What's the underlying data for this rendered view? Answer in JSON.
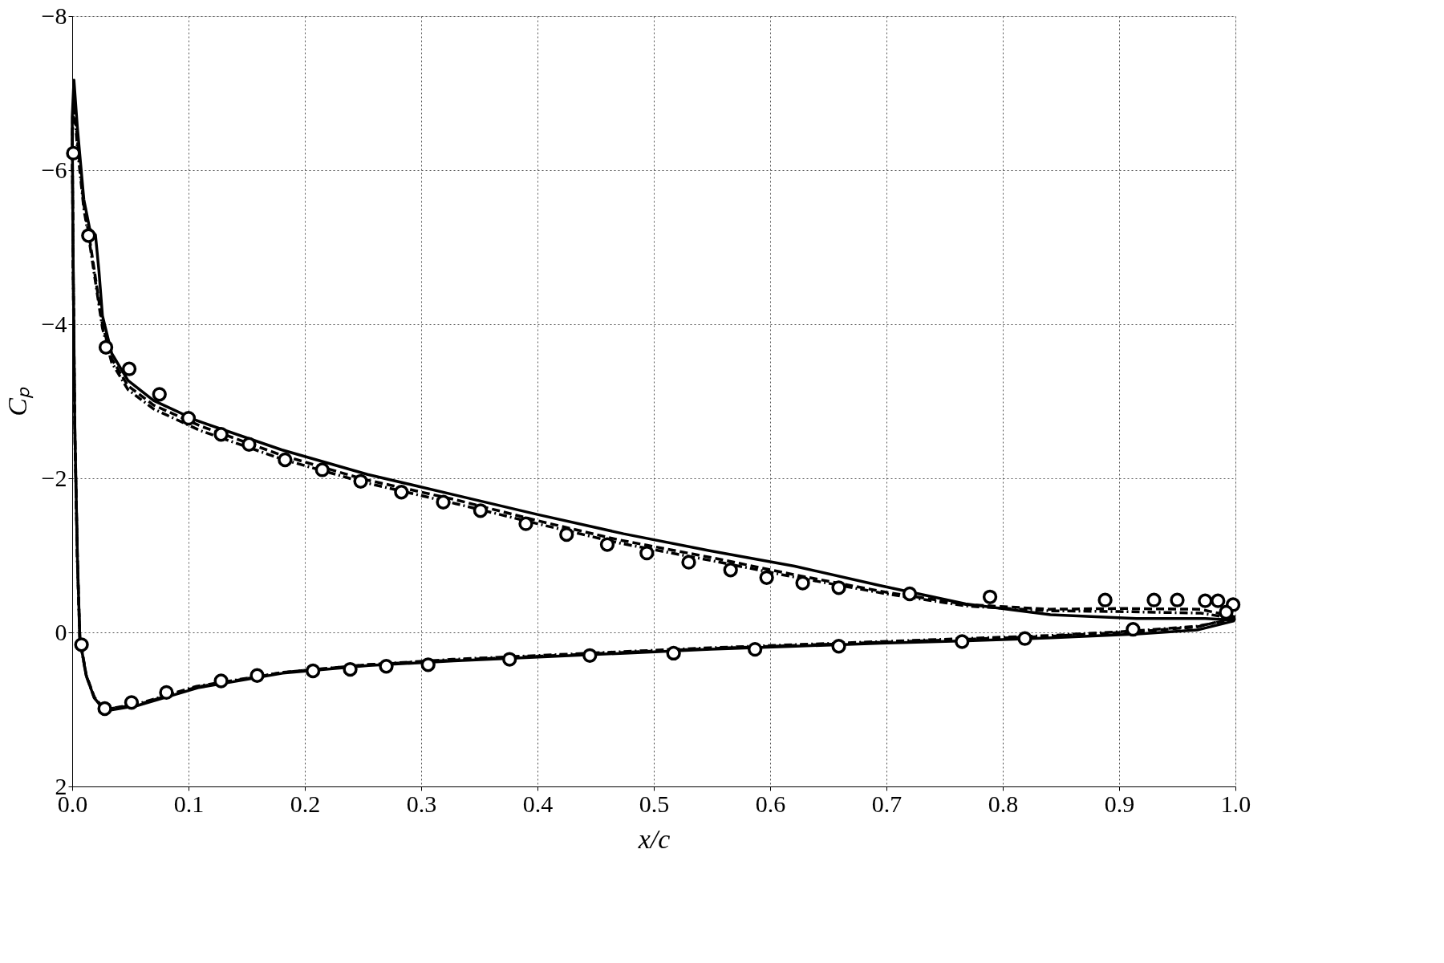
{
  "chart_data": {
    "type": "line",
    "xlabel": "x/c",
    "ylabel": "Cₚ",
    "xlim": [
      0,
      1
    ],
    "ylim": [
      2,
      -8
    ],
    "xticks": [
      {
        "value": 0,
        "label": "0.0"
      },
      0.1,
      0.2,
      0.3,
      0.4,
      0.5,
      0.6,
      0.7,
      0.8,
      0.9,
      {
        "value": 1,
        "label": "1.0"
      }
    ],
    "yticks": [
      2,
      0,
      -2,
      -4,
      -6,
      -8
    ],
    "grid": true,
    "series": [
      {
        "color": "#000000",
        "line_style": "solid",
        "marker": "none",
        "x": [
          1.0,
          0.974,
          0.915,
          0.841,
          0.768,
          0.694,
          0.621,
          0.548,
          0.474,
          0.4,
          0.327,
          0.254,
          0.18,
          0.107,
          0.07,
          0.048,
          0.034,
          0.026,
          0.023,
          0.02,
          0.015,
          0.01,
          0.0044,
          0.0015,
          0.0,
          0.0007,
          0.0022,
          0.0045,
          0.0066,
          0.012,
          0.019,
          0.028,
          0.056,
          0.108,
          0.181,
          0.255,
          0.328,
          0.401,
          0.475,
          0.549,
          0.622,
          0.695,
          0.769,
          0.842,
          0.916,
          0.967,
          0.999
        ],
        "values": [
          -0.16,
          -0.18,
          -0.18,
          -0.23,
          -0.37,
          -0.61,
          -0.86,
          -1.06,
          -1.28,
          -1.53,
          -1.79,
          -2.05,
          -2.37,
          -2.75,
          -3.01,
          -3.27,
          -3.62,
          -4.11,
          -4.69,
          -5.16,
          -5.24,
          -5.62,
          -6.56,
          -7.17,
          -6.68,
          -5.04,
          -2.71,
          -0.96,
          0.09,
          0.56,
          0.85,
          1.02,
          0.95,
          0.72,
          0.53,
          0.43,
          0.37,
          0.32,
          0.27,
          0.22,
          0.18,
          0.14,
          0.11,
          0.07,
          0.02,
          -0.03,
          -0.15
        ]
      },
      {
        "color": "#000000",
        "line_style": "dashed",
        "marker": "none",
        "x": [
          1.0,
          0.97,
          0.9,
          0.84,
          0.77,
          0.7,
          0.62,
          0.55,
          0.47,
          0.4,
          0.33,
          0.25,
          0.18,
          0.11,
          0.07,
          0.048,
          0.034,
          0.026,
          0.02,
          0.015,
          0.01,
          0.0044,
          0.0015,
          0.0,
          0.0007,
          0.0022,
          0.0045,
          0.0066,
          0.012,
          0.019,
          0.028,
          0.056,
          0.107,
          0.181,
          0.254,
          0.327,
          0.401,
          0.474,
          0.548,
          0.621,
          0.694,
          0.768,
          0.841,
          0.915,
          0.967,
          0.999
        ],
        "values": [
          -0.2,
          -0.3,
          -0.31,
          -0.3,
          -0.36,
          -0.52,
          -0.75,
          -0.97,
          -1.2,
          -1.45,
          -1.72,
          -1.99,
          -2.3,
          -2.68,
          -2.95,
          -3.2,
          -3.55,
          -4.0,
          -4.6,
          -5.1,
          -5.55,
          -6.4,
          -6.95,
          -6.5,
          -5.0,
          -2.7,
          -0.95,
          0.08,
          0.55,
          0.84,
          1.0,
          0.94,
          0.71,
          0.52,
          0.42,
          0.36,
          0.31,
          0.26,
          0.21,
          0.17,
          0.13,
          0.09,
          0.05,
          -0.01,
          -0.07,
          -0.19
        ]
      },
      {
        "color": "#000000",
        "line_style": "dashdot",
        "marker": "none",
        "x": [
          1.0,
          0.97,
          0.9,
          0.84,
          0.77,
          0.7,
          0.62,
          0.55,
          0.47,
          0.4,
          0.33,
          0.25,
          0.18,
          0.11,
          0.07,
          0.048,
          0.034,
          0.026,
          0.02,
          0.015,
          0.01,
          0.0044,
          0.0015,
          0.0,
          0.0007,
          0.0022,
          0.0045,
          0.0066,
          0.012,
          0.019,
          0.028,
          0.056,
          0.107,
          0.181,
          0.254,
          0.327,
          0.401,
          0.474,
          0.548,
          0.621,
          0.694,
          0.768,
          0.841,
          0.915,
          0.967,
          0.999
        ],
        "values": [
          -0.18,
          -0.25,
          -0.27,
          -0.28,
          -0.34,
          -0.5,
          -0.72,
          -0.93,
          -1.16,
          -1.41,
          -1.67,
          -1.95,
          -2.25,
          -2.62,
          -2.9,
          -3.15,
          -3.5,
          -3.95,
          -4.55,
          -5.05,
          -5.5,
          -6.3,
          -6.85,
          -6.4,
          -4.9,
          -2.6,
          -0.9,
          0.1,
          0.56,
          0.85,
          1.0,
          0.93,
          0.7,
          0.52,
          0.42,
          0.35,
          0.3,
          0.25,
          0.2,
          0.16,
          0.12,
          0.08,
          0.04,
          -0.02,
          -0.08,
          -0.17
        ]
      },
      {
        "type": "scatter",
        "color": "#000000",
        "marker": "circle",
        "x": [
          0.001,
          0.014,
          0.029,
          0.049,
          0.075,
          0.1,
          0.128,
          0.152,
          0.183,
          0.215,
          0.248,
          0.283,
          0.319,
          0.351,
          0.39,
          0.425,
          0.46,
          0.494,
          0.53,
          0.566,
          0.597,
          0.628,
          0.659,
          0.72,
          0.789,
          0.888,
          0.93,
          0.95,
          0.974,
          0.985,
          0.998,
          0.992,
          0.008,
          0.028,
          0.051,
          0.081,
          0.128,
          0.159,
          0.207,
          0.239,
          0.27,
          0.306,
          0.376,
          0.445,
          0.517,
          0.587,
          0.659,
          0.765,
          0.819,
          0.912
        ],
        "values": [
          -6.22,
          -5.15,
          -3.7,
          -3.42,
          -3.09,
          -2.78,
          -2.57,
          -2.44,
          -2.24,
          -2.11,
          -1.96,
          -1.82,
          -1.69,
          -1.58,
          -1.41,
          -1.27,
          -1.14,
          -1.03,
          -0.91,
          -0.81,
          -0.71,
          -0.64,
          -0.58,
          -0.5,
          -0.46,
          -0.42,
          -0.42,
          -0.42,
          -0.41,
          -0.41,
          -0.36,
          -0.26,
          0.16,
          0.99,
          0.91,
          0.78,
          0.63,
          0.56,
          0.5,
          0.48,
          0.44,
          0.42,
          0.35,
          0.3,
          0.27,
          0.22,
          0.18,
          0.12,
          0.08,
          -0.04
        ]
      }
    ]
  }
}
